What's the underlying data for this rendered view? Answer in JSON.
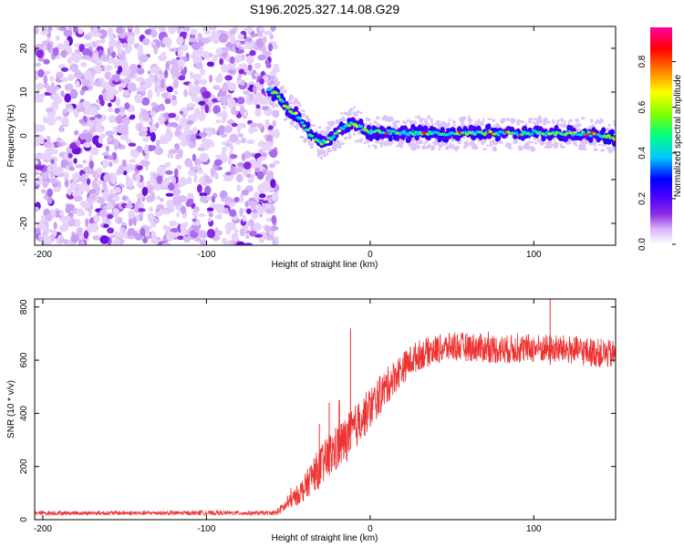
{
  "figure_title": "S196.2025.327.14.08.G29",
  "chart_data": [
    {
      "type": "heatmap",
      "name": "spectrogram",
      "xlabel": "Height of straight line (km)",
      "ylabel": "Frequency (Hz)",
      "xlim": [
        -205,
        150
      ],
      "ylim": [
        -25,
        25
      ],
      "xticks": [
        -200,
        -100,
        0,
        100
      ],
      "yticks": [
        -20,
        -10,
        0,
        10,
        20
      ],
      "colorbar": {
        "label": "Normalized spectral amplitude",
        "range": [
          0.0,
          0.95
        ],
        "ticks": [
          0.0,
          0.2,
          0.4,
          0.6,
          0.8
        ],
        "tick_labels": [
          "0.0",
          "0.2",
          "0.4",
          "0.6",
          "0.8"
        ],
        "colormap": [
          "#ffffff",
          "#d8b4f8",
          "#8a2be2",
          "#4b00ff",
          "#0000ff",
          "#00c8ff",
          "#00ff80",
          "#80ff00",
          "#ffff00",
          "#ff8000",
          "#ff0000",
          "#ff00a0"
        ]
      },
      "noise_region": {
        "x": [
          -205,
          -57
        ],
        "y": [
          -25,
          25
        ]
      },
      "signal_track": {
        "x": [
          -62,
          -58,
          -54,
          -50,
          -46,
          -42,
          -38,
          -34,
          -30,
          -26,
          -22,
          -18,
          -14,
          -10,
          -6,
          -2,
          0,
          5,
          10,
          20,
          30,
          40,
          50,
          60,
          70,
          80,
          90,
          100,
          110,
          120,
          130,
          140,
          150
        ],
        "frequency": [
          10.5,
          9.8,
          8.0,
          6.0,
          5.2,
          3.5,
          1.0,
          -1.0,
          -1.5,
          -1.0,
          0.0,
          1.5,
          2.5,
          2.8,
          2.0,
          1.0,
          0.8,
          1.0,
          0.8,
          0.7,
          0.5,
          0.7,
          0.3,
          0.6,
          0.5,
          0.6,
          0.4,
          0.8,
          0.4,
          0.6,
          0.5,
          0.3,
          -0.5
        ]
      }
    },
    {
      "type": "line",
      "name": "snr",
      "xlabel": "Height of straight line (km)",
      "ylabel": "SNR (10 * v/v)",
      "xlim": [
        -205,
        150
      ],
      "ylim": [
        0,
        830
      ],
      "xticks": [
        -200,
        -100,
        0,
        100
      ],
      "yticks": [
        0,
        200,
        400,
        600,
        800
      ],
      "color": "#ee3333",
      "trend": {
        "x": [
          -205,
          -100,
          -58,
          -52,
          -45,
          -40,
          -35,
          -30,
          -25,
          -20,
          -15,
          -10,
          -5,
          0,
          5,
          10,
          15,
          20,
          25,
          30,
          40,
          50,
          60,
          80,
          100,
          120,
          150
        ],
        "y": [
          25,
          25,
          25,
          50,
          90,
          120,
          170,
          200,
          240,
          270,
          300,
          340,
          380,
          420,
          460,
          500,
          540,
          570,
          600,
          620,
          640,
          650,
          650,
          640,
          645,
          640,
          620
        ]
      },
      "noise_amplitude": {
        "x": [
          -205,
          -60,
          -50,
          -40,
          -30,
          -20,
          0,
          20,
          40,
          150
        ],
        "y": [
          8,
          8,
          25,
          50,
          80,
          90,
          80,
          60,
          55,
          55
        ]
      },
      "spikes": [
        {
          "x": -31,
          "y": 360
        },
        {
          "x": -25,
          "y": 440
        },
        {
          "x": -19,
          "y": 450
        },
        {
          "x": -12,
          "y": 720
        },
        {
          "x": 110,
          "y": 830
        }
      ]
    }
  ]
}
